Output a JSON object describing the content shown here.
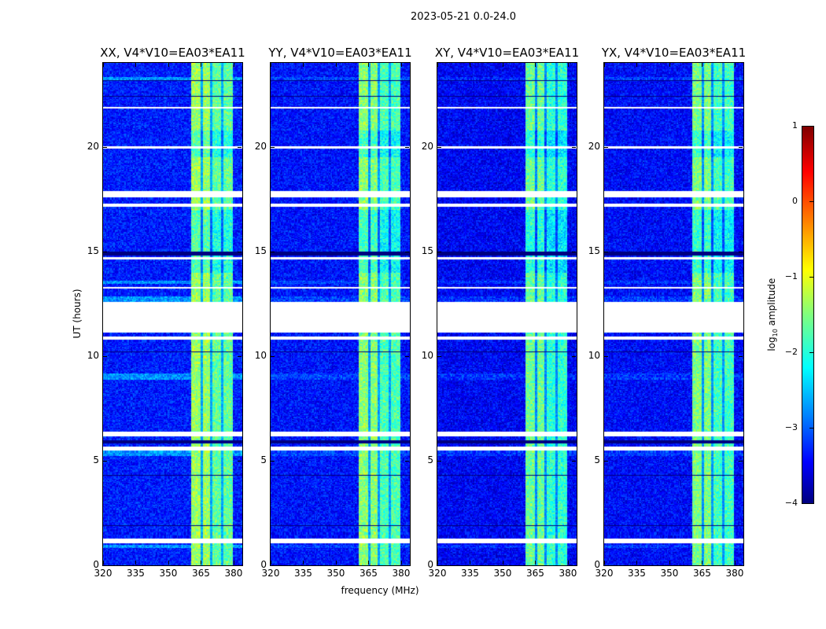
{
  "suptitle": "2023-05-21 0.0-24.0",
  "chart_data": {
    "type": "heatmap",
    "title": "2023-05-21 0.0-24.0",
    "xlabel": "frequency (MHz)",
    "ylabel": "UT (hours)",
    "xlim": [
      320,
      384
    ],
    "ylim": [
      0,
      24
    ],
    "xticks": [
      "320",
      "335",
      "350",
      "365",
      "380"
    ],
    "xtick_values": [
      320,
      335,
      350,
      365,
      380
    ],
    "yticks": [
      "0",
      "5",
      "10",
      "15",
      "20"
    ],
    "ytick_values": [
      0,
      5,
      10,
      15,
      20
    ],
    "panels": [
      {
        "title": "XX, V4*V10=EA03*EA11",
        "band_level": -1.35,
        "noise_level": -3.25
      },
      {
        "title": "YY, V4*V10=EA03*EA11",
        "band_level": -1.45,
        "noise_level": -3.3
      },
      {
        "title": "XY, V4*V10=EA03*EA11",
        "band_level": -1.6,
        "noise_level": -3.4
      },
      {
        "title": "YX, V4*V10=EA03*EA11",
        "band_level": -1.5,
        "noise_level": -3.35
      }
    ],
    "rfi_band_mhz": [
      360.5,
      380
    ],
    "band_gaps_mhz": [
      365.5,
      370.2,
      375
    ],
    "flagged_hours": [
      [
        21.8,
        21.9
      ],
      [
        19.9,
        20.05
      ],
      [
        17.6,
        17.9
      ],
      [
        17.55,
        17.6
      ],
      [
        17.1,
        17.3
      ],
      [
        15.68,
        15.72
      ],
      [
        15.48,
        15.52
      ],
      [
        14.6,
        14.75
      ],
      [
        13.0,
        13.05
      ],
      [
        13.2,
        13.3
      ],
      [
        11.1,
        12.6
      ],
      [
        10.75,
        10.95
      ],
      [
        7.58,
        7.62
      ],
      [
        6.53,
        6.57
      ],
      [
        6.15,
        6.4
      ],
      [
        5.45,
        5.68
      ],
      [
        4.83,
        4.87
      ],
      [
        4.53,
        4.57
      ],
      [
        3.58,
        3.62
      ],
      [
        3.38,
        3.42
      ],
      [
        2.98,
        3.02
      ],
      [
        2.03,
        2.07
      ],
      [
        1.7,
        1.74
      ],
      [
        1.55,
        1.58
      ],
      [
        1.4,
        1.43
      ],
      [
        1.05,
        1.28
      ],
      [
        0.05,
        0.09
      ]
    ],
    "zero_rows_hours": [
      [
        23.15,
        23.2
      ],
      [
        22.4,
        22.45
      ],
      [
        18.23,
        18.27
      ],
      [
        16.73,
        16.77
      ],
      [
        14.8,
        15.0
      ],
      [
        13.83,
        13.87
      ],
      [
        12.88,
        12.92
      ],
      [
        10.2,
        10.24
      ],
      [
        7.13,
        7.17
      ],
      [
        6.68,
        6.72
      ],
      [
        5.85,
        6.0
      ],
      [
        5.13,
        5.17
      ],
      [
        4.3,
        4.34
      ],
      [
        4.08,
        4.12
      ],
      [
        2.13,
        2.17
      ],
      [
        1.9,
        1.94
      ],
      [
        0.78,
        0.82
      ]
    ],
    "elevated_rows_hours": [
      [
        23.2,
        23.35
      ],
      [
        13.45,
        13.6
      ],
      [
        12.6,
        12.85
      ],
      [
        8.9,
        9.2
      ],
      [
        5.25,
        5.45
      ],
      [
        0.85,
        1.0
      ]
    ],
    "colorbar": {
      "label": "log10 amplitude",
      "label_main": "log",
      "label_sub": "10",
      "label_rest": " amplitude",
      "range": [
        -4,
        1
      ],
      "ticks": [
        "1",
        "0",
        "−1",
        "−2",
        "−3",
        "−4"
      ],
      "tick_values": [
        1,
        0,
        -1,
        -2,
        -3,
        -4
      ],
      "colormap": "jet"
    }
  }
}
